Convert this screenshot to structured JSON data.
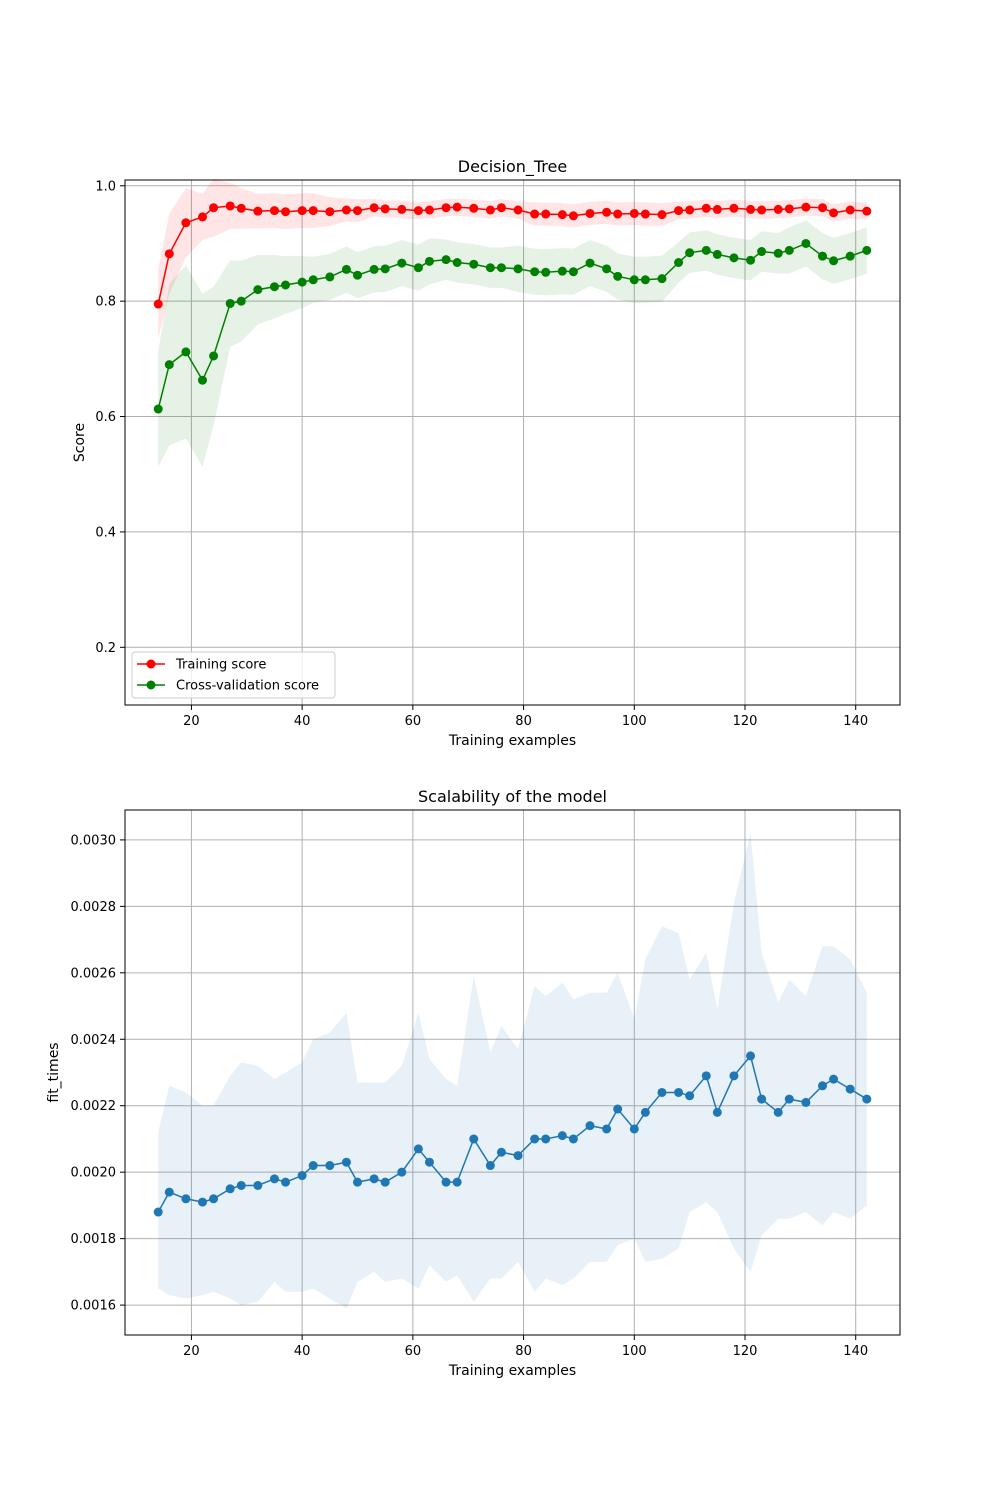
{
  "chart_data": [
    {
      "type": "line",
      "title": "Decision_Tree",
      "xlabel": "Training examples",
      "ylabel": "Score",
      "xlim": [
        8,
        148
      ],
      "ylim": [
        0.1,
        1.01
      ],
      "xticks": [
        20,
        40,
        60,
        80,
        100,
        120,
        140
      ],
      "yticks": [
        0.2,
        0.4,
        0.6,
        0.8,
        1.0
      ],
      "ytick_labels": [
        "0.2",
        "0.4",
        "0.6",
        "0.8",
        "1.0"
      ],
      "grid": true,
      "legend": "lower-left",
      "x": [
        14,
        16,
        19,
        22,
        24,
        27,
        29,
        32,
        35,
        37,
        40,
        42,
        45,
        48,
        50,
        53,
        55,
        58,
        61,
        63,
        66,
        68,
        71,
        74,
        76,
        79,
        82,
        84,
        87,
        89,
        92,
        95,
        97,
        100,
        102,
        105,
        108,
        110,
        113,
        115,
        118,
        121,
        123,
        126,
        128,
        131,
        134,
        136,
        139,
        142
      ],
      "series": [
        {
          "name": "Training score",
          "color": "#ff0000",
          "values": [
            0.795,
            0.882,
            0.936,
            0.946,
            0.962,
            0.965,
            0.961,
            0.956,
            0.957,
            0.955,
            0.957,
            0.957,
            0.955,
            0.958,
            0.957,
            0.962,
            0.96,
            0.959,
            0.957,
            0.958,
            0.962,
            0.963,
            0.961,
            0.958,
            0.962,
            0.958,
            0.951,
            0.951,
            0.95,
            0.948,
            0.952,
            0.954,
            0.951,
            0.952,
            0.951,
            0.95,
            0.957,
            0.958,
            0.961,
            0.959,
            0.961,
            0.959,
            0.958,
            0.959,
            0.96,
            0.963,
            0.962,
            0.953,
            0.958,
            0.956
          ],
          "std": [
            0.06,
            0.07,
            0.06,
            0.04,
            0.05,
            0.04,
            0.035,
            0.03,
            0.03,
            0.03,
            0.03,
            0.03,
            0.025,
            0.02,
            0.02,
            0.015,
            0.015,
            0.015,
            0.015,
            0.015,
            0.015,
            0.015,
            0.015,
            0.015,
            0.015,
            0.015,
            0.02,
            0.02,
            0.02,
            0.02,
            0.02,
            0.02,
            0.02,
            0.02,
            0.02,
            0.02,
            0.015,
            0.015,
            0.015,
            0.015,
            0.015,
            0.015,
            0.015,
            0.015,
            0.015,
            0.015,
            0.015,
            0.015,
            0.015,
            0.015
          ]
        },
        {
          "name": "Cross-validation score",
          "color": "#008000",
          "values": [
            0.613,
            0.69,
            0.712,
            0.663,
            0.705,
            0.796,
            0.8,
            0.82,
            0.825,
            0.828,
            0.833,
            0.837,
            0.842,
            0.855,
            0.845,
            0.855,
            0.856,
            0.866,
            0.858,
            0.869,
            0.872,
            0.867,
            0.864,
            0.858,
            0.858,
            0.856,
            0.851,
            0.85,
            0.852,
            0.851,
            0.866,
            0.856,
            0.843,
            0.837,
            0.837,
            0.839,
            0.867,
            0.884,
            0.888,
            0.881,
            0.875,
            0.871,
            0.886,
            0.883,
            0.888,
            0.9,
            0.878,
            0.87,
            0.878,
            0.888
          ],
          "std": [
            0.1,
            0.14,
            0.15,
            0.15,
            0.12,
            0.075,
            0.07,
            0.06,
            0.055,
            0.05,
            0.045,
            0.04,
            0.04,
            0.04,
            0.04,
            0.04,
            0.04,
            0.04,
            0.04,
            0.04,
            0.035,
            0.035,
            0.035,
            0.035,
            0.035,
            0.04,
            0.04,
            0.04,
            0.04,
            0.04,
            0.04,
            0.04,
            0.04,
            0.04,
            0.04,
            0.04,
            0.035,
            0.035,
            0.035,
            0.035,
            0.035,
            0.035,
            0.035,
            0.035,
            0.04,
            0.04,
            0.04,
            0.04,
            0.04,
            0.04
          ]
        }
      ]
    },
    {
      "type": "line",
      "title": "Scalability of the model",
      "xlabel": "Training examples",
      "ylabel": "fit_times",
      "xlim": [
        8,
        148
      ],
      "ylim": [
        0.00151,
        0.00309
      ],
      "xticks": [
        20,
        40,
        60,
        80,
        100,
        120,
        140
      ],
      "yticks": [
        0.0016,
        0.0018,
        0.002,
        0.0022,
        0.0024,
        0.0026,
        0.0028,
        0.003
      ],
      "ytick_labels": [
        "0.0016",
        "0.0018",
        "0.0020",
        "0.0022",
        "0.0024",
        "0.0026",
        "0.0028",
        "0.0030"
      ],
      "grid": true,
      "x": [
        14,
        16,
        19,
        22,
        24,
        27,
        29,
        32,
        35,
        37,
        40,
        42,
        45,
        48,
        50,
        53,
        55,
        58,
        61,
        63,
        66,
        68,
        71,
        74,
        76,
        79,
        82,
        84,
        87,
        89,
        92,
        95,
        97,
        100,
        102,
        105,
        108,
        110,
        113,
        115,
        118,
        121,
        123,
        126,
        128,
        131,
        134,
        136,
        139,
        142
      ],
      "series": [
        {
          "color": "#1f77b4",
          "values": [
            0.00188,
            0.00194,
            0.00192,
            0.00191,
            0.00192,
            0.00195,
            0.00196,
            0.00196,
            0.00198,
            0.00197,
            0.00199,
            0.00202,
            0.00202,
            0.00203,
            0.00197,
            0.00198,
            0.00197,
            0.002,
            0.00207,
            0.00203,
            0.00197,
            0.00197,
            0.0021,
            0.00202,
            0.00206,
            0.00205,
            0.0021,
            0.0021,
            0.00211,
            0.0021,
            0.00214,
            0.00213,
            0.00219,
            0.00213,
            0.00218,
            0.00224,
            0.00224,
            0.00223,
            0.00229,
            0.00218,
            0.00229,
            0.00235,
            0.00222,
            0.00218,
            0.00222,
            0.00221,
            0.00226,
            0.00228,
            0.00225,
            0.00222
          ],
          "upper": [
            0.00212,
            0.00226,
            0.00224,
            0.0022,
            0.0022,
            0.00229,
            0.00233,
            0.00232,
            0.00228,
            0.0023,
            0.00233,
            0.0024,
            0.00242,
            0.00248,
            0.00227,
            0.00227,
            0.00227,
            0.00232,
            0.00248,
            0.00234,
            0.00228,
            0.00226,
            0.00259,
            0.00236,
            0.00244,
            0.00237,
            0.00256,
            0.00253,
            0.00257,
            0.00252,
            0.00254,
            0.00254,
            0.0026,
            0.00246,
            0.00264,
            0.00274,
            0.00272,
            0.00258,
            0.00266,
            0.00249,
            0.00281,
            0.00302,
            0.00266,
            0.00251,
            0.00258,
            0.00253,
            0.00268,
            0.00268,
            0.00264,
            0.00254
          ],
          "lower": [
            0.00165,
            0.00163,
            0.00162,
            0.00163,
            0.00164,
            0.00162,
            0.0016,
            0.00161,
            0.00167,
            0.00164,
            0.00164,
            0.00165,
            0.00162,
            0.00159,
            0.00167,
            0.0017,
            0.00167,
            0.00168,
            0.00165,
            0.00172,
            0.00167,
            0.00169,
            0.00161,
            0.00168,
            0.00168,
            0.00173,
            0.00164,
            0.00168,
            0.00166,
            0.00168,
            0.00173,
            0.00173,
            0.00178,
            0.0018,
            0.00173,
            0.00174,
            0.00177,
            0.00188,
            0.00191,
            0.00188,
            0.00177,
            0.0017,
            0.00181,
            0.00186,
            0.00186,
            0.00188,
            0.00184,
            0.00188,
            0.00186,
            0.0019
          ]
        }
      ]
    }
  ]
}
